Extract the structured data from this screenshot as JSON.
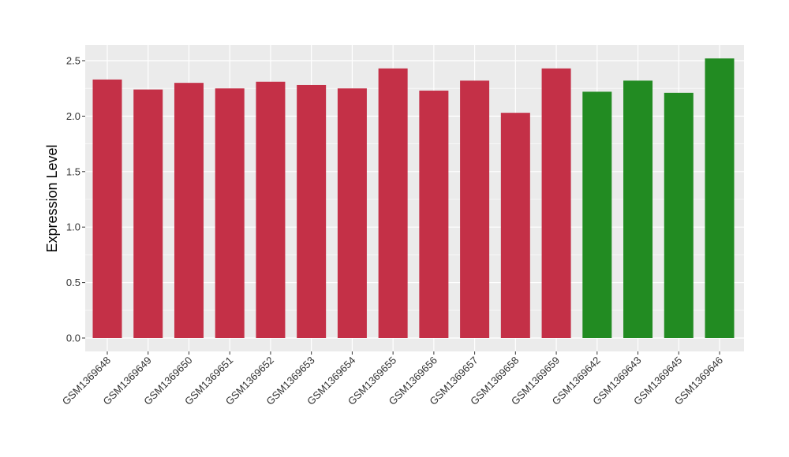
{
  "chart_data": {
    "type": "bar",
    "title": "",
    "xlabel": "",
    "ylabel": "Expression Level",
    "ylim": [
      0,
      2.6
    ],
    "yticks": [
      0.0,
      0.5,
      1.0,
      1.5,
      2.0,
      2.5
    ],
    "ytick_labels": [
      "0.0",
      "0.5",
      "1.0",
      "1.5",
      "2.0",
      "2.5"
    ],
    "grid": true,
    "categories": [
      "GSM1369648",
      "GSM1369649",
      "GSM1369650",
      "GSM1369651",
      "GSM1369652",
      "GSM1369653",
      "GSM1369654",
      "GSM1369655",
      "GSM1369656",
      "GSM1369657",
      "GSM1369658",
      "GSM1369659",
      "GSM1369642",
      "GSM1369643",
      "GSM1369645",
      "GSM1369646"
    ],
    "values": [
      2.33,
      2.24,
      2.3,
      2.25,
      2.31,
      2.28,
      2.25,
      2.43,
      2.23,
      2.32,
      2.03,
      2.43,
      2.22,
      2.32,
      2.21,
      2.52
    ],
    "bar_colors": [
      "#c43047",
      "#c43047",
      "#c43047",
      "#c43047",
      "#c43047",
      "#c43047",
      "#c43047",
      "#c43047",
      "#c43047",
      "#c43047",
      "#c43047",
      "#c43047",
      "#228b22",
      "#228b22",
      "#228b22",
      "#228b22"
    ],
    "panel_background": "#ebebeb",
    "grid_color": "#ffffff"
  }
}
